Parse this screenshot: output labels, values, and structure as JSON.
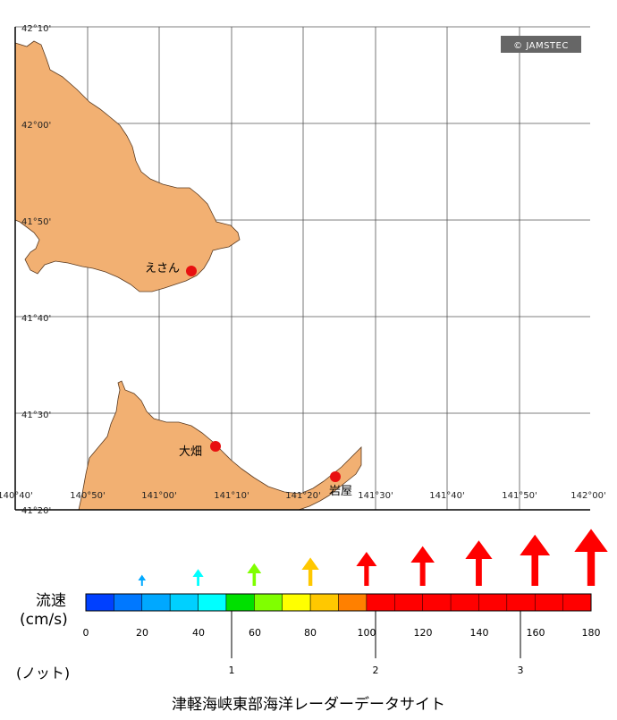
{
  "credit": "© JAMSTEC",
  "map": {
    "latitude_labels": [
      "42°10'",
      "42°00'",
      "41°50'",
      "41°40'",
      "41°30'",
      "41°20'"
    ],
    "longitude_labels": [
      "140°40'",
      "140°50'",
      "141°00'",
      "141°10'",
      "141°20'",
      "141°30'",
      "141°40'",
      "141°50'",
      "142°00'"
    ],
    "land_color": "#f2b072",
    "places": [
      {
        "name": "えさん",
        "lon": "141.08",
        "lat": "41.74"
      },
      {
        "name": "大畑",
        "lon": "141.13",
        "lat": "41.44"
      },
      {
        "name": "岩屋",
        "lon": "141.39",
        "lat": "41.39"
      }
    ],
    "marker_color": "#e81010"
  },
  "legend": {
    "speed_label": "流速",
    "unit_label": "(cm/s)",
    "knot_label": "(ノット)",
    "cms_ticks": [
      "0",
      "20",
      "40",
      "60",
      "80",
      "100",
      "120",
      "140",
      "160",
      "180"
    ],
    "knot_ticks": [
      "1",
      "2",
      "3"
    ],
    "bins": [
      {
        "from": 0,
        "to": 10,
        "color": "#0040ff"
      },
      {
        "from": 10,
        "to": 20,
        "color": "#0078ff"
      },
      {
        "from": 20,
        "to": 30,
        "color": "#00a8ff"
      },
      {
        "from": 30,
        "to": 40,
        "color": "#00d0ff"
      },
      {
        "from": 40,
        "to": 50,
        "color": "#00ffff"
      },
      {
        "from": 50,
        "to": 60,
        "color": "#00e000"
      },
      {
        "from": 60,
        "to": 70,
        "color": "#80ff00"
      },
      {
        "from": 70,
        "to": 80,
        "color": "#ffff00"
      },
      {
        "from": 80,
        "to": 90,
        "color": "#ffc800"
      },
      {
        "from": 90,
        "to": 100,
        "color": "#ff8000"
      },
      {
        "from": 100,
        "to": 180,
        "color": "#ff0000"
      }
    ],
    "arrows": [
      {
        "speed": 20,
        "color": "#00a8ff"
      },
      {
        "speed": 40,
        "color": "#00ffff"
      },
      {
        "speed": 60,
        "color": "#80ff00"
      },
      {
        "speed": 80,
        "color": "#ffc800"
      },
      {
        "speed": 100,
        "color": "#ff0000"
      },
      {
        "speed": 120,
        "color": "#ff0000"
      },
      {
        "speed": 140,
        "color": "#ff0000"
      },
      {
        "speed": 160,
        "color": "#ff0000"
      },
      {
        "speed": 180,
        "color": "#ff0000"
      }
    ]
  },
  "site_title": "津軽海峡東部海洋レーダーデータサイト"
}
